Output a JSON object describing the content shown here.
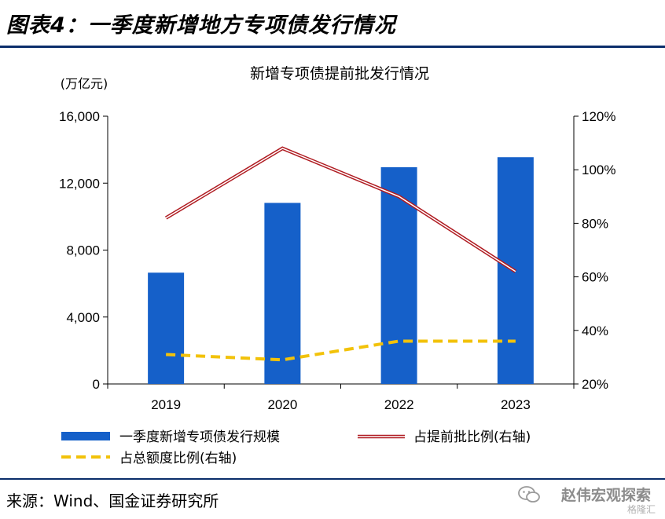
{
  "header": {
    "title": "图表4：一季度新增地方专项债发行情况"
  },
  "footer": {
    "source": "来源：Wind、国金证券研究所"
  },
  "watermark": {
    "name": "赵伟宏观探索",
    "sub": "格隆汇"
  },
  "chart_data": {
    "type": "bar",
    "title": "新增专项债提前批发行情况",
    "left_unit_label": "(万亿元)",
    "categories": [
      "2019",
      "2020",
      "2022",
      "2023"
    ],
    "left_axis": {
      "ylim": [
        0,
        16000
      ],
      "ticks": [
        0,
        4000,
        8000,
        12000,
        16000
      ],
      "tick_labels": [
        "0",
        "4,000",
        "8,000",
        "12,000",
        "16,000"
      ]
    },
    "right_axis": {
      "ylim": [
        20,
        120
      ],
      "ticks": [
        20,
        40,
        60,
        80,
        100,
        120
      ],
      "tick_labels": [
        "20%",
        "40%",
        "60%",
        "80%",
        "100%",
        "120%"
      ]
    },
    "series": [
      {
        "name": "一季度新增专项债发行规模",
        "type": "bar",
        "axis": "left",
        "color": "#1560c9",
        "values": [
          6650,
          10820,
          12950,
          13550
        ]
      },
      {
        "name": "占提前批比例(右轴)",
        "type": "line",
        "axis": "right",
        "color": "#b01c22",
        "values": [
          82,
          108,
          90,
          62
        ]
      },
      {
        "name": "占总额度比例(右轴)",
        "type": "line",
        "axis": "right",
        "color": "#f2c20a",
        "dashed": true,
        "values": [
          31,
          29,
          36,
          36
        ]
      }
    ],
    "legend_position": "bottom",
    "grid": false
  }
}
